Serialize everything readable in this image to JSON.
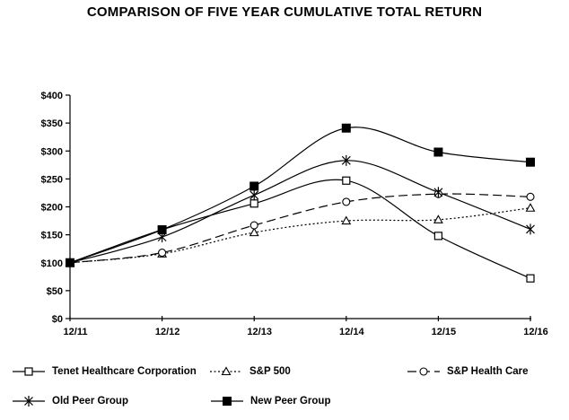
{
  "title": "COMPARISON OF FIVE YEAR CUMULATIVE TOTAL RETURN",
  "colors": {
    "line": "#000000",
    "background": "#ffffff",
    "text": "#000000",
    "marker_fill": "#ffffff"
  },
  "axes": {
    "y_tick_labels": [
      "$0",
      "$50",
      "$100",
      "$150",
      "$200",
      "$250",
      "$300",
      "$350",
      "$400"
    ],
    "x_tick_labels": [
      "12/11",
      "12/12",
      "12/13",
      "12/14",
      "12/15",
      "12/16"
    ]
  },
  "chart_data": {
    "type": "line",
    "title": "COMPARISON OF FIVE YEAR CUMULATIVE TOTAL RETURN",
    "categories": [
      "12/11",
      "12/12",
      "12/13",
      "12/14",
      "12/15",
      "12/16"
    ],
    "series": [
      {
        "name": "Tenet Healthcare Corporation",
        "marker": "open-square",
        "line_style": "solid",
        "values": [
          100,
          159,
          206,
          247,
          148,
          72
        ]
      },
      {
        "name": "S&P 500",
        "marker": "open-triangle",
        "line_style": "dotted",
        "values": [
          100,
          116,
          154,
          175,
          177,
          198
        ]
      },
      {
        "name": "S&P Health Care",
        "marker": "open-circle",
        "line_style": "dashed",
        "values": [
          100,
          118,
          167,
          209,
          223,
          218
        ]
      },
      {
        "name": "Old Peer Group",
        "marker": "asterisk",
        "line_style": "solid",
        "values": [
          100,
          146,
          221,
          283,
          226,
          160
        ]
      },
      {
        "name": "New Peer Group",
        "marker": "filled-square",
        "line_style": "solid",
        "values": [
          100,
          159,
          237,
          341,
          298,
          280
        ]
      }
    ],
    "xlabel": "",
    "ylabel": "",
    "ylim": [
      0,
      400
    ],
    "y_tick_step": 50,
    "y_tick_prefix": "$",
    "grid": false,
    "smoothed_lines": true,
    "legend_position": "bottom"
  }
}
